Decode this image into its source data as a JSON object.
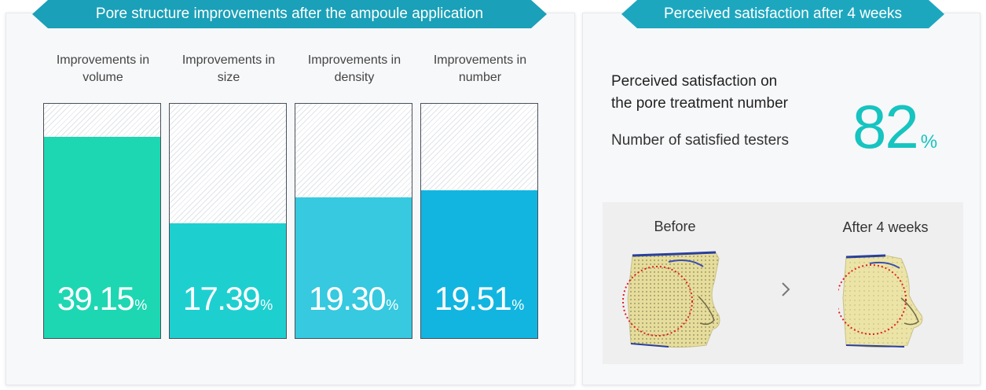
{
  "left_panel": {
    "banner": "Pore structure improvements after the ampoule application",
    "bars": [
      {
        "label": "Improvements in\nvolume",
        "value": "39.15",
        "unit": "%",
        "fill_fraction": 0.86,
        "color": "#1dd7b2"
      },
      {
        "label": "Improvements in\nsize",
        "value": "17.39",
        "unit": "%",
        "fill_fraction": 0.49,
        "color": "#1ecfd0"
      },
      {
        "label": "Improvements in\ndensity",
        "value": "19.30",
        "unit": "%",
        "fill_fraction": 0.6,
        "color": "#36c9df"
      },
      {
        "label": "Improvements in\nnumber",
        "value": "19.51",
        "unit": "%",
        "fill_fraction": 0.63,
        "color": "#12b5e0"
      }
    ]
  },
  "right_panel": {
    "banner": "Perceived satisfaction after 4 weeks",
    "satisfaction_title": "Perceived satisfaction on\nthe pore treatment number",
    "satisfaction_subtitle": "Number of satisfied testers",
    "satisfaction_value": "82",
    "satisfaction_unit": "%",
    "compare": {
      "before_label": "Before",
      "after_label": "After 4 weeks",
      "arrow_icon": "chevron-right-icon"
    }
  },
  "colors": {
    "banner": "#1aa0b8",
    "accent": "#16c4c0",
    "circle": "#e02020"
  }
}
